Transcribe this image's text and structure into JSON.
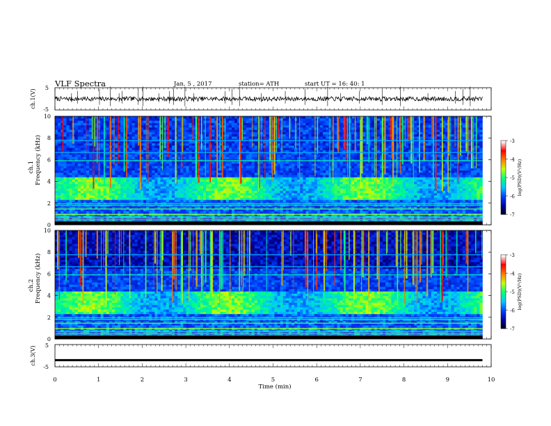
{
  "header": {
    "title": "VLF  Spectra",
    "date": "Jan. 5  , 2017",
    "station": "station= ATH",
    "start_time": "start  UT  =   16: 40: 1"
  },
  "chart_data": [
    {
      "type": "line",
      "panel": "ch1-waveform",
      "ylabel": "ch.1(V)",
      "yticks": [
        "5",
        "-5"
      ],
      "ylim": [
        -5,
        5
      ],
      "x_range_min": [
        0,
        9.8
      ],
      "baseline_v": 0,
      "noise_amplitude_v": 1.0,
      "spike_times_min": [
        0.38,
        0.52,
        1.02,
        1.27,
        1.47,
        1.54,
        1.91,
        2.02,
        2.38,
        2.62,
        2.72,
        2.98,
        3.18,
        3.9,
        4.06,
        4.23,
        4.73,
        5.28,
        5.73,
        6.25,
        6.55,
        6.98,
        7.5,
        7.92,
        8.55,
        9.18,
        9.35,
        9.52
      ]
    },
    {
      "type": "heatmap",
      "panel": "ch1-spectrogram",
      "ylabel": "Frequency  (kHz)",
      "channel_label": "ch.1",
      "ylim_khz": [
        0,
        10
      ],
      "yticks": [
        "0",
        "2",
        "4",
        "6",
        "8",
        "10"
      ],
      "x_range_min": [
        0,
        9.8
      ],
      "colorbar_label": "log(PSD)(V²/Hz)",
      "colorbar_ticks": [
        "-3",
        "-4",
        "-5",
        "-6",
        "-7"
      ],
      "colorbar_range": [
        -7,
        -3
      ],
      "colormap": [
        "#000000",
        "#0000a0",
        "#0040ff",
        "#00c8ff",
        "#00ff80",
        "#c8ff00",
        "#ff8000",
        "#ff0000",
        "#ffffff"
      ]
    },
    {
      "type": "heatmap",
      "panel": "ch2-spectrogram",
      "ylabel": "Frequency  (kHz)",
      "channel_label": "ch.2",
      "ylim_khz": [
        0,
        10
      ],
      "yticks": [
        "0",
        "2",
        "4",
        "6",
        "8",
        "10"
      ],
      "x_range_min": [
        0,
        9.8
      ],
      "colorbar_label": "log(PSD)(V²/Hz)",
      "colorbar_ticks": [
        "-3",
        "-4",
        "-5",
        "-6",
        "-7"
      ],
      "colorbar_range": [
        -7,
        -3
      ],
      "colormap": [
        "#000000",
        "#0000a0",
        "#0040ff",
        "#00c8ff",
        "#00ff80",
        "#c8ff00",
        "#ff8000",
        "#ff0000",
        "#ffffff"
      ]
    },
    {
      "type": "line",
      "panel": "ch3-waveform",
      "ylabel": "ch.3(V)",
      "yticks": [
        "5",
        "-5"
      ],
      "ylim": [
        -5,
        5
      ],
      "x_range_min": [
        0,
        9.8
      ],
      "baseline_v": -2.0
    }
  ],
  "x_axis": {
    "label": "Time  (min)",
    "ticks": [
      "0",
      "1",
      "2",
      "3",
      "4",
      "5",
      "6",
      "7",
      "8",
      "9",
      "10"
    ],
    "range": [
      0,
      10
    ]
  }
}
